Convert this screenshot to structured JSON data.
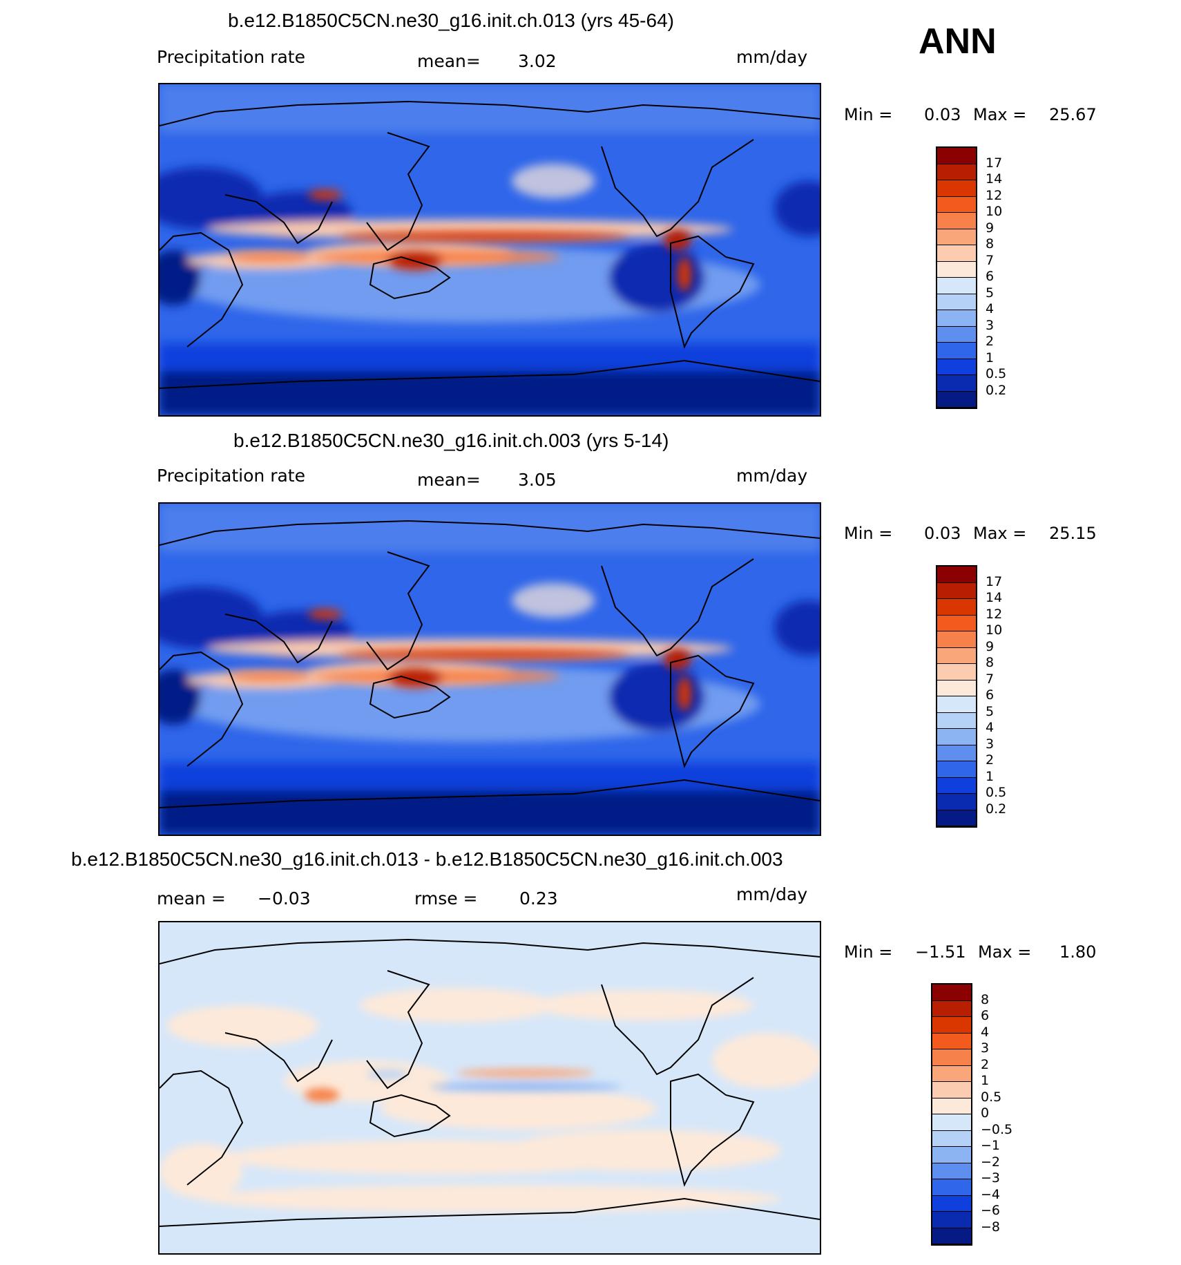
{
  "season_label": "ANN",
  "panels": [
    {
      "title": "b.e12.B1850C5CN.ne30_g16.init.ch.013 (yrs 45-64)",
      "left_label": "Precipitation  rate",
      "mean_label": "mean=",
      "mean_value": "3.02",
      "units": "mm/day",
      "min_label": "Min  =",
      "min_value": "0.03",
      "max_label": "Max  =",
      "max_value": "25.67",
      "colorbar_labels": [
        "17",
        "14",
        "12",
        "10",
        "9",
        "8",
        "7",
        "6",
        "5",
        "4",
        "3",
        "2",
        "1",
        "0.5",
        "0.2"
      ],
      "colorbar_colors": [
        "#8b0000",
        "#b81e00",
        "#d93600",
        "#f25a1e",
        "#f7814a",
        "#f9a77a",
        "#fcccb0",
        "#fde9d9",
        "#d6e7fa",
        "#b5d1f6",
        "#8db4f2",
        "#5f8fee",
        "#2f66ea",
        "#0f3fdc",
        "#0a2ab0",
        "#061a86"
      ]
    },
    {
      "title": "b.e12.B1850C5CN.ne30_g16.init.ch.003 (yrs 5-14)",
      "left_label": "Precipitation  rate",
      "mean_label": "mean=",
      "mean_value": "3.05",
      "units": "mm/day",
      "min_label": "Min  =",
      "min_value": "0.03",
      "max_label": "Max  =",
      "max_value": "25.15",
      "colorbar_labels": [
        "17",
        "14",
        "12",
        "10",
        "9",
        "8",
        "7",
        "6",
        "5",
        "4",
        "3",
        "2",
        "1",
        "0.5",
        "0.2"
      ],
      "colorbar_colors": [
        "#8b0000",
        "#b81e00",
        "#d93600",
        "#f25a1e",
        "#f7814a",
        "#f9a77a",
        "#fcccb0",
        "#fde9d9",
        "#d6e7fa",
        "#b5d1f6",
        "#8db4f2",
        "#5f8fee",
        "#2f66ea",
        "#0f3fdc",
        "#0a2ab0",
        "#061a86"
      ]
    },
    {
      "title": "b.e12.B1850C5CN.ne30_g16.init.ch.013 - b.e12.B1850C5CN.ne30_g16.init.ch.003",
      "mean_label": "mean  =",
      "mean_value": "−0.03",
      "rmse_label": "rmse  =",
      "rmse_value": "0.23",
      "units": "mm/day",
      "min_label": "Min  =",
      "min_value": "−1.51",
      "max_label": "Max  =",
      "max_value": "1.80",
      "colorbar_labels": [
        "8",
        "6",
        "4",
        "3",
        "2",
        "1",
        "0.5",
        "0",
        "−0.5",
        "−1",
        "−2",
        "−3",
        "−4",
        "−6",
        "−8"
      ],
      "colorbar_colors": [
        "#8b0000",
        "#b81e00",
        "#d93600",
        "#f25a1e",
        "#f7814a",
        "#f9a77a",
        "#fcccb0",
        "#fde9d9",
        "#d6e7fa",
        "#b5d1f6",
        "#8db4f2",
        "#5f8fee",
        "#2f66ea",
        "#0f3fdc",
        "#0a2ab0",
        "#061a86"
      ]
    }
  ]
}
